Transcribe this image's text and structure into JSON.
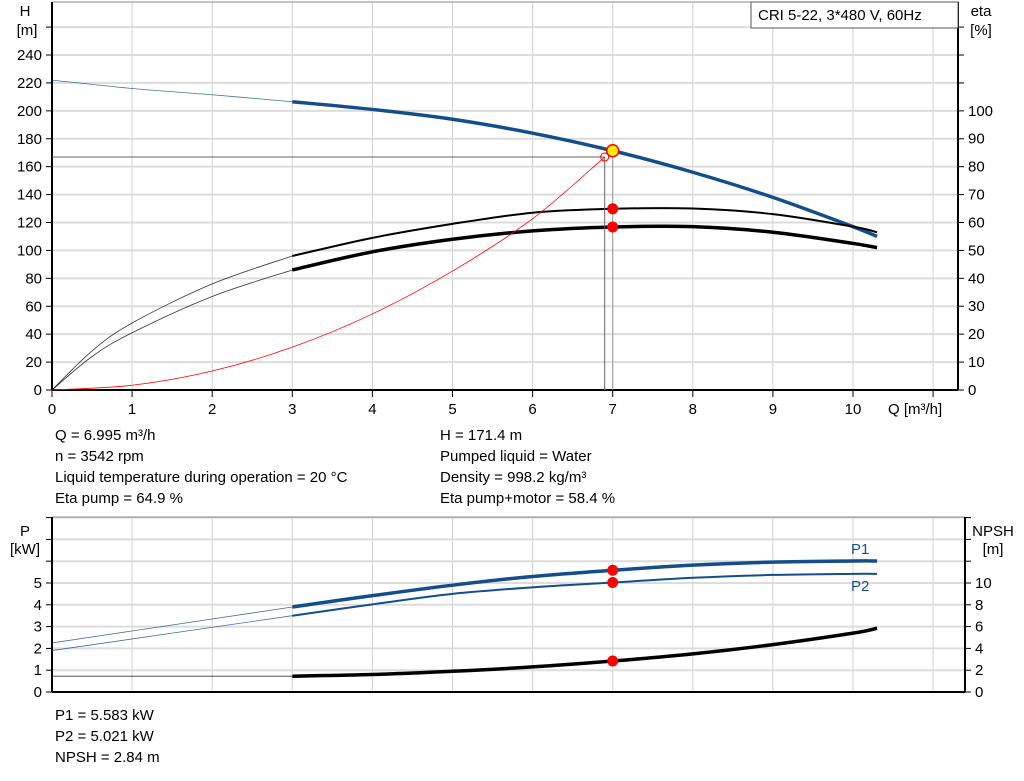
{
  "chart_data": [
    {
      "type": "line",
      "title": "CRI 5-22, 3*480 V, 60Hz",
      "xlabel": "Q [m³/h]",
      "ylabel_left": "H",
      "ylabel_left_unit": "[m]",
      "ylabel_right": "eta",
      "ylabel_right_unit": "[%]",
      "xlim": [
        0,
        11.3
      ],
      "ylim_left": [
        0,
        240
      ],
      "ylim_right": [
        0,
        100
      ],
      "grid": true,
      "x_ticks": [
        "0",
        "1",
        "2",
        "3",
        "4",
        "5",
        "6",
        "7",
        "8",
        "9",
        "10"
      ],
      "y_left_ticks": [
        "0",
        "20",
        "40",
        "60",
        "80",
        "100",
        "120",
        "140",
        "160",
        "180",
        "200",
        "220",
        "240"
      ],
      "y_right_ticks": [
        "0",
        "10",
        "20",
        "30",
        "40",
        "50",
        "60",
        "70",
        "80",
        "90",
        "100"
      ],
      "series": [
        {
          "axis": "left",
          "color": "#134e8a",
          "thin_until": 3,
          "points": [
            [
              0,
              222
            ],
            [
              1,
              216
            ],
            [
              2,
              211.5
            ],
            [
              3,
              206.5
            ],
            [
              4,
              201
            ],
            [
              5,
              194
            ],
            [
              6,
              184
            ],
            [
              7,
              171.4
            ],
            [
              8,
              156
            ],
            [
              9,
              138
            ],
            [
              10,
              117
            ],
            [
              10.3,
              110
            ]
          ]
        },
        {
          "axis": "right",
          "color": "#000000",
          "thin_until": 3,
          "points": [
            [
              0,
              0
            ],
            [
              0.5,
              14
            ],
            [
              1,
              24
            ],
            [
              2,
              38
            ],
            [
              3,
              48
            ],
            [
              4,
              54.5
            ],
            [
              5,
              59.5
            ],
            [
              6,
              63.5
            ],
            [
              7,
              64.9
            ],
            [
              8,
              65
            ],
            [
              9,
              63
            ],
            [
              10,
              58.5
            ],
            [
              10.3,
              56.5
            ]
          ]
        },
        {
          "axis": "right",
          "color": "#000000",
          "thin_until": 3,
          "bold": true,
          "points": [
            [
              0,
              0
            ],
            [
              0.5,
              12
            ],
            [
              1,
              20.5
            ],
            [
              2,
              33.5
            ],
            [
              3,
              43
            ],
            [
              4,
              49.5
            ],
            [
              5,
              54
            ],
            [
              6,
              57
            ],
            [
              7,
              58.4
            ],
            [
              8,
              58.5
            ],
            [
              9,
              56.5
            ],
            [
              10,
              52.5
            ],
            [
              10.3,
              51
            ]
          ]
        },
        {
          "axis": "left",
          "color": "#ff0000",
          "system_curve": true,
          "points": [
            [
              0,
              0
            ],
            [
              1,
              3.4
            ],
            [
              2,
              13.6
            ],
            [
              3,
              30.7
            ],
            [
              4,
              54.5
            ],
            [
              5,
              85.2
            ],
            [
              6,
              122.7
            ],
            [
              6.9,
              166.9
            ]
          ]
        }
      ],
      "duty_point": {
        "Q": 7,
        "H": 171.4,
        "color": "#ffee00"
      },
      "required_point": {
        "Q": 6.9,
        "H": 166.9
      },
      "markers": [
        {
          "Q": 7,
          "eta": 64.9
        },
        {
          "Q": 7,
          "eta": 58.4
        }
      ]
    },
    {
      "type": "line",
      "ylabel_left": "P",
      "ylabel_left_unit": "[kW]",
      "ylabel_right": "NPSH",
      "ylabel_right_unit": "[m]",
      "xlim": [
        0,
        11.4
      ],
      "ylim_left": [
        0,
        8
      ],
      "ylim_right": [
        0,
        16
      ],
      "grid": true,
      "y_left_ticks": [
        "0",
        "1",
        "2",
        "3",
        "4",
        "5"
      ],
      "y_right_ticks": [
        "0",
        "2",
        "4",
        "6",
        "8",
        "10"
      ],
      "series": [
        {
          "name": "P1",
          "axis": "left",
          "color": "#134e8a",
          "bold": true,
          "thin_until": 3,
          "points": [
            [
              0,
              2.25
            ],
            [
              3,
              3.9
            ],
            [
              4,
              4.42
            ],
            [
              5,
              4.9
            ],
            [
              6,
              5.3
            ],
            [
              7,
              5.583
            ],
            [
              8,
              5.82
            ],
            [
              9,
              5.96
            ],
            [
              10,
              6.01
            ],
            [
              10.3,
              6.01
            ]
          ]
        },
        {
          "name": "P2",
          "axis": "left",
          "color": "#134e8a",
          "thin_until": 3,
          "points": [
            [
              0,
              1.9
            ],
            [
              3,
              3.5
            ],
            [
              4,
              4.02
            ],
            [
              5,
              4.5
            ],
            [
              6,
              4.8
            ],
            [
              7,
              5.021
            ],
            [
              8,
              5.24
            ],
            [
              9,
              5.37
            ],
            [
              10,
              5.42
            ],
            [
              10.3,
              5.42
            ]
          ]
        },
        {
          "axis": "right",
          "color": "#000000",
          "bold": true,
          "thin_until": 3,
          "points": [
            [
              0,
              1.45
            ],
            [
              3,
              1.45
            ],
            [
              4,
              1.6
            ],
            [
              5,
              1.9
            ],
            [
              6,
              2.3
            ],
            [
              7,
              2.84
            ],
            [
              8,
              3.5
            ],
            [
              9,
              4.35
            ],
            [
              10,
              5.4
            ],
            [
              10.3,
              5.85
            ]
          ]
        }
      ],
      "markers": [
        {
          "Q": 7,
          "P": 5.583
        },
        {
          "Q": 7,
          "P": 5.021
        },
        {
          "Q": 7,
          "NPSH": 2.84
        }
      ]
    }
  ],
  "info_top": {
    "left": [
      "Q = 6.995 m³/h",
      "n = 3542 rpm",
      "Liquid temperature during operation = 20 °C",
      "Eta pump = 64.9 %"
    ],
    "right": [
      "H = 171.4 m",
      "Pumped liquid = Water",
      "Density = 998.2 kg/m³",
      "Eta pump+motor = 58.4 %"
    ]
  },
  "info_bottom": [
    "P1 = 5.583 kW",
    "P2 = 5.021 kW",
    "NPSH = 2.84 m"
  ]
}
